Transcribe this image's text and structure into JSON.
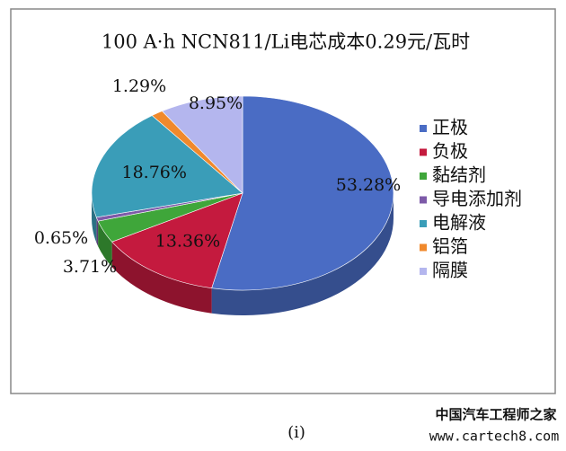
{
  "chart_data": {
    "type": "pie",
    "title": "100 A·h NCN811/Li电芯成本0.29元/瓦时",
    "categories": [
      "正极",
      "负极",
      "黏结剂",
      "导电添加剂",
      "电解液",
      "铝箔",
      "隔膜"
    ],
    "values": [
      53.28,
      13.36,
      3.71,
      0.65,
      18.76,
      1.29,
      8.95
    ],
    "value_labels": [
      "53.28%",
      "13.36%",
      "3.71%",
      "0.65%",
      "18.76%",
      "1.29%",
      "8.95%"
    ],
    "colors": [
      "#4a6cc4",
      "#c41a3e",
      "#3fa63a",
      "#7d5aa8",
      "#3a9db8",
      "#f0892c",
      "#b4b6ee"
    ],
    "legend": "right"
  },
  "caption": "(i)",
  "watermark": [
    "中国汽车工程师之家",
    "www.cartech8.com"
  ]
}
